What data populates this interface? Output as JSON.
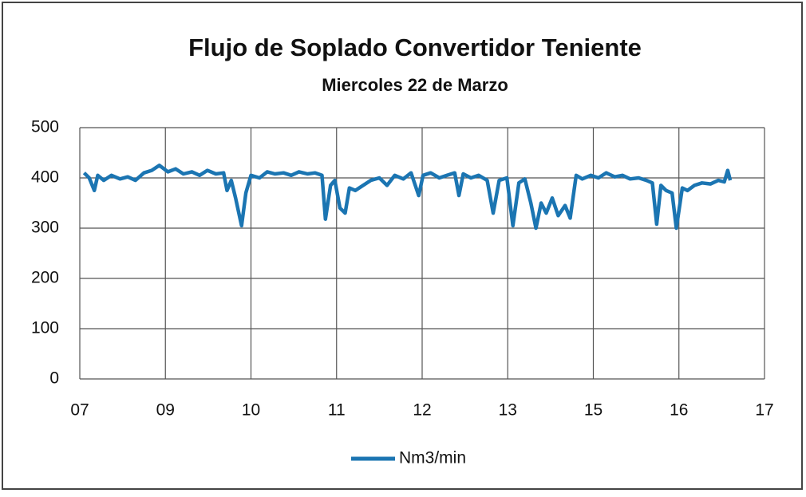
{
  "chart_data": {
    "type": "line",
    "title": "Flujo de Soplado Convertidor Teniente",
    "subtitle": "Miercoles 22 de Marzo",
    "xlim": [
      0,
      8
    ],
    "xticks": [
      {
        "value": 0,
        "label": "07"
      },
      {
        "value": 1,
        "label": "09"
      },
      {
        "value": 2,
        "label": "10"
      },
      {
        "value": 3,
        "label": "11"
      },
      {
        "value": 4,
        "label": "12"
      },
      {
        "value": 5,
        "label": "13"
      },
      {
        "value": 6,
        "label": "15"
      },
      {
        "value": 7,
        "label": "16"
      },
      {
        "value": 8,
        "label": "17"
      }
    ],
    "ylim": [
      0,
      500
    ],
    "yticks": [
      0,
      100,
      200,
      300,
      400,
      500
    ],
    "grid": true,
    "legend": "bottom",
    "x": [
      0.05,
      0.11,
      0.17,
      0.21,
      0.28,
      0.37,
      0.47,
      0.56,
      0.65,
      0.75,
      0.84,
      0.93,
      1.03,
      1.12,
      1.21,
      1.31,
      1.4,
      1.49,
      1.59,
      1.68,
      1.72,
      1.77,
      1.82,
      1.89,
      1.94,
      2.0,
      2.1,
      2.19,
      2.28,
      2.38,
      2.47,
      2.56,
      2.66,
      2.75,
      2.83,
      2.87,
      2.93,
      2.98,
      3.04,
      3.1,
      3.15,
      3.22,
      3.31,
      3.4,
      3.5,
      3.59,
      3.68,
      3.78,
      3.87,
      3.96,
      4.01,
      4.1,
      4.2,
      4.29,
      4.38,
      4.43,
      4.48,
      4.57,
      4.66,
      4.76,
      4.83,
      4.9,
      4.99,
      5.06,
      5.13,
      5.2,
      5.27,
      5.33,
      5.39,
      5.45,
      5.52,
      5.59,
      5.67,
      5.73,
      5.8,
      5.87,
      5.97,
      6.06,
      6.15,
      6.25,
      6.34,
      6.43,
      6.53,
      6.62,
      6.69,
      6.74,
      6.79,
      6.85,
      6.92,
      6.97,
      7.04,
      7.1,
      7.18,
      7.27,
      7.37,
      7.46,
      7.53,
      7.57,
      7.6
    ],
    "series": [
      {
        "name": "Nm3/min",
        "color": "#1b75b2",
        "values": [
          410,
          400,
          375,
          405,
          395,
          405,
          398,
          402,
          395,
          410,
          415,
          425,
          412,
          418,
          408,
          412,
          405,
          415,
          408,
          410,
          375,
          395,
          360,
          305,
          370,
          405,
          400,
          412,
          408,
          410,
          405,
          412,
          408,
          410,
          405,
          318,
          385,
          395,
          340,
          330,
          380,
          375,
          385,
          395,
          400,
          385,
          405,
          398,
          410,
          365,
          405,
          410,
          400,
          405,
          410,
          365,
          408,
          400,
          405,
          395,
          330,
          395,
          400,
          305,
          390,
          398,
          350,
          300,
          350,
          330,
          360,
          325,
          345,
          320,
          405,
          398,
          405,
          400,
          410,
          402,
          405,
          398,
          400,
          395,
          390,
          308,
          385,
          375,
          370,
          300,
          380,
          375,
          385,
          390,
          388,
          395,
          392,
          415,
          395
        ]
      }
    ]
  }
}
